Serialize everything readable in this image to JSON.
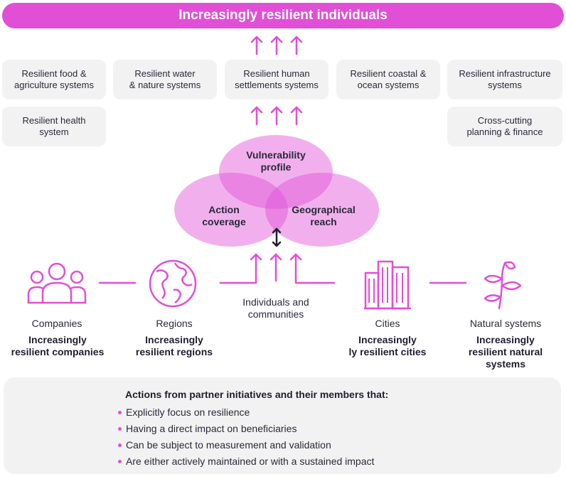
{
  "banner": {
    "title": "Increasingly resilient individuals"
  },
  "systems": [
    {
      "label_line1": "Resilient food &",
      "label_line2": "agriculture systems"
    },
    {
      "label_line1": "Resilient water",
      "label_line2": "& nature systems"
    },
    {
      "label_line1": "Resilient human",
      "label_line2": "settlements systems"
    },
    {
      "label_line1": "Resilient coastal &",
      "label_line2": "ocean systems"
    },
    {
      "label_line1": "Resilient infrastructure",
      "label_line2": "systems"
    },
    {
      "label_line1": "Resilient health",
      "label_line2": "system"
    },
    {
      "label_line1": "Cross-cutting",
      "label_line2": "planning & finance"
    }
  ],
  "venn": {
    "top": {
      "line1": "Vulnerability",
      "line2": "profile"
    },
    "left": {
      "line1": "Action",
      "line2": "coverage"
    },
    "right": {
      "line1": "Geographical",
      "line2": "reach"
    }
  },
  "entities": {
    "companies": {
      "title": "Companies",
      "sub_line1": "Increasingly",
      "sub_line2": "resilient companies"
    },
    "regions": {
      "title": "Regions",
      "sub_line1": "Increasingly",
      "sub_line2": "resilient regions"
    },
    "individuals": {
      "title_line1": "Individuals and",
      "title_line2": "communities"
    },
    "cities": {
      "title": "Cities",
      "sub_line1": "Increasingly",
      "sub_line2": "ly resilient cities"
    },
    "natural": {
      "title": "Natural systems",
      "sub_line1": "Increasingly",
      "sub_line2": "resilient natural",
      "sub_line3": "systems"
    }
  },
  "criteria": {
    "title": "Actions from partner initiatives and their members that:",
    "items": [
      "Explicitly focus on resilience",
      "Having a direct impact on beneficiaries",
      "Can be subject to measurement and validation",
      "Are either actively maintained or with a sustained impact"
    ]
  },
  "colors": {
    "accent": "#e14fd6",
    "circle_fill": "#e9a0e3",
    "box_bg": "#f2f2f2",
    "dark": "#1f1f2e"
  },
  "icons": [
    "up-arrow-icon",
    "people-icon",
    "globe-icon",
    "buildings-icon",
    "plant-icon",
    "double-arrow-icon"
  ]
}
